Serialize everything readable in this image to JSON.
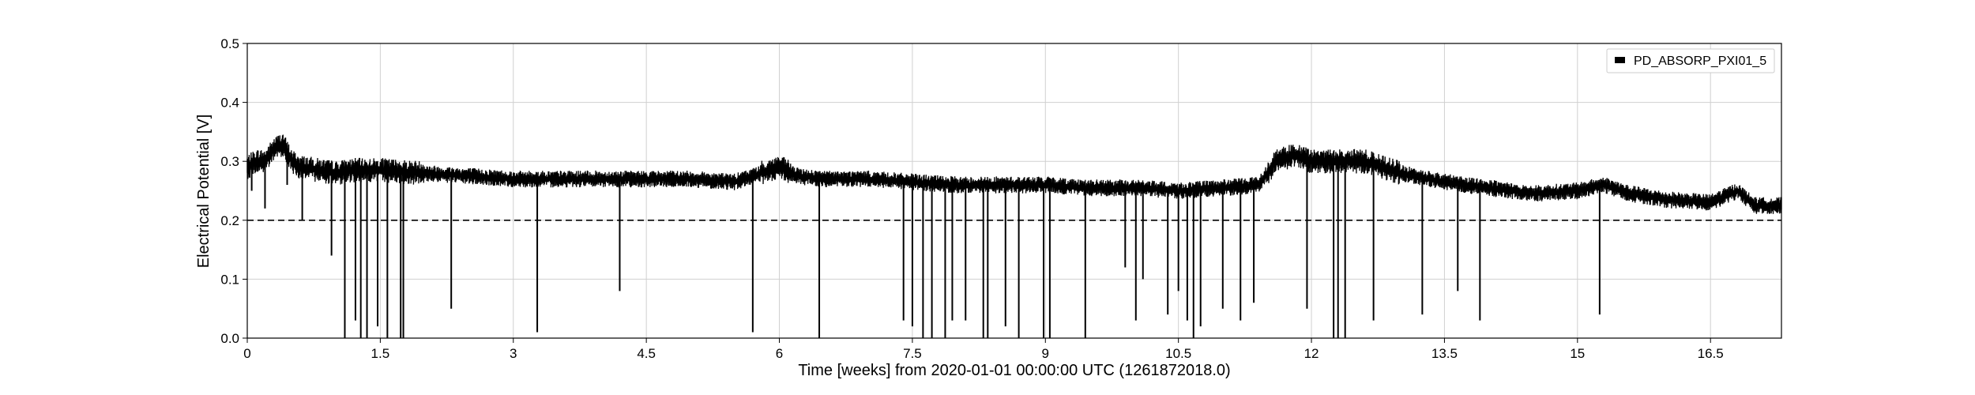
{
  "chart_data": {
    "type": "line",
    "xlabel": "Time [weeks] from 2020-01-01 00:00:00 UTC (1261872018.0)",
    "ylabel": "Electrical Potential [V]",
    "xlim": [
      0,
      17.3
    ],
    "ylim": [
      0,
      0.5
    ],
    "x_ticks": [
      0,
      1.5,
      3,
      4.5,
      6,
      7.5,
      9,
      10.5,
      12,
      13.5,
      15,
      16.5
    ],
    "x_tick_labels": [
      "0",
      "1.5",
      "3",
      "4.5",
      "6",
      "7.5",
      "9",
      "10.5",
      "12",
      "13.5",
      "15",
      "16.5"
    ],
    "y_ticks": [
      0,
      0.1,
      0.2,
      0.3,
      0.4,
      0.5
    ],
    "y_tick_labels": [
      "0.0",
      "0.1",
      "0.2",
      "0.3",
      "0.4",
      "0.5"
    ],
    "grid": true,
    "legend_position": "top-right",
    "threshold": {
      "y": 0.2,
      "style": "dashed",
      "color": "#000000"
    },
    "series": [
      {
        "name": "PD_ABSORP_PXI01_5",
        "color": "#000000",
        "x": [
          0,
          0.1,
          0.2,
          0.3,
          0.4,
          0.5,
          0.6,
          0.8,
          1.0,
          1.2,
          1.5,
          2.0,
          2.5,
          3.0,
          3.5,
          4.0,
          4.5,
          5.0,
          5.5,
          5.8,
          6.0,
          6.2,
          6.5,
          7.0,
          7.5,
          8.0,
          8.5,
          9.0,
          9.5,
          10.0,
          10.5,
          11.0,
          11.4,
          11.6,
          11.8,
          12.0,
          12.3,
          12.6,
          13.0,
          13.5,
          14.0,
          14.5,
          15.0,
          15.3,
          15.6,
          16.0,
          16.5,
          16.8,
          17.0,
          17.3
        ],
        "values": [
          0.29,
          0.3,
          0.3,
          0.32,
          0.33,
          0.3,
          0.29,
          0.285,
          0.28,
          0.285,
          0.285,
          0.28,
          0.275,
          0.27,
          0.27,
          0.27,
          0.27,
          0.27,
          0.265,
          0.28,
          0.29,
          0.275,
          0.27,
          0.27,
          0.265,
          0.26,
          0.26,
          0.26,
          0.255,
          0.255,
          0.25,
          0.255,
          0.26,
          0.3,
          0.31,
          0.3,
          0.3,
          0.3,
          0.28,
          0.265,
          0.255,
          0.245,
          0.25,
          0.26,
          0.245,
          0.235,
          0.23,
          0.25,
          0.225,
          0.225
        ]
      }
    ],
    "dips": [
      {
        "x": 0.05,
        "y": 0.25
      },
      {
        "x": 0.2,
        "y": 0.22
      },
      {
        "x": 0.45,
        "y": 0.26
      },
      {
        "x": 0.62,
        "y": 0.2
      },
      {
        "x": 0.95,
        "y": 0.14
      },
      {
        "x": 1.1,
        "y": 0.0
      },
      {
        "x": 1.22,
        "y": 0.03
      },
      {
        "x": 1.28,
        "y": 0.0
      },
      {
        "x": 1.35,
        "y": 0.0
      },
      {
        "x": 1.47,
        "y": 0.02
      },
      {
        "x": 1.58,
        "y": 0.0
      },
      {
        "x": 1.73,
        "y": 0.0
      },
      {
        "x": 1.76,
        "y": 0.0
      },
      {
        "x": 2.3,
        "y": 0.05
      },
      {
        "x": 3.27,
        "y": 0.01
      },
      {
        "x": 4.2,
        "y": 0.08
      },
      {
        "x": 5.7,
        "y": 0.01
      },
      {
        "x": 6.45,
        "y": 0.0
      },
      {
        "x": 7.4,
        "y": 0.03
      },
      {
        "x": 7.5,
        "y": 0.02
      },
      {
        "x": 7.62,
        "y": 0.0
      },
      {
        "x": 7.72,
        "y": 0.0
      },
      {
        "x": 7.87,
        "y": 0.0
      },
      {
        "x": 7.95,
        "y": 0.03
      },
      {
        "x": 8.1,
        "y": 0.03
      },
      {
        "x": 8.3,
        "y": 0.0
      },
      {
        "x": 8.35,
        "y": 0.0
      },
      {
        "x": 8.55,
        "y": 0.02
      },
      {
        "x": 8.7,
        "y": 0.0
      },
      {
        "x": 8.98,
        "y": 0.0
      },
      {
        "x": 9.05,
        "y": 0.0
      },
      {
        "x": 9.45,
        "y": 0.0
      },
      {
        "x": 9.9,
        "y": 0.12
      },
      {
        "x": 10.02,
        "y": 0.03
      },
      {
        "x": 10.1,
        "y": 0.1
      },
      {
        "x": 10.38,
        "y": 0.04
      },
      {
        "x": 10.5,
        "y": 0.08
      },
      {
        "x": 10.6,
        "y": 0.03
      },
      {
        "x": 10.67,
        "y": 0.0
      },
      {
        "x": 10.75,
        "y": 0.02
      },
      {
        "x": 11.0,
        "y": 0.05
      },
      {
        "x": 11.2,
        "y": 0.03
      },
      {
        "x": 11.35,
        "y": 0.06
      },
      {
        "x": 11.95,
        "y": 0.05
      },
      {
        "x": 12.25,
        "y": 0.0
      },
      {
        "x": 12.3,
        "y": 0.0
      },
      {
        "x": 12.38,
        "y": 0.0
      },
      {
        "x": 12.7,
        "y": 0.03
      },
      {
        "x": 13.25,
        "y": 0.04
      },
      {
        "x": 13.65,
        "y": 0.08
      },
      {
        "x": 13.9,
        "y": 0.03
      },
      {
        "x": 15.25,
        "y": 0.04
      }
    ]
  }
}
